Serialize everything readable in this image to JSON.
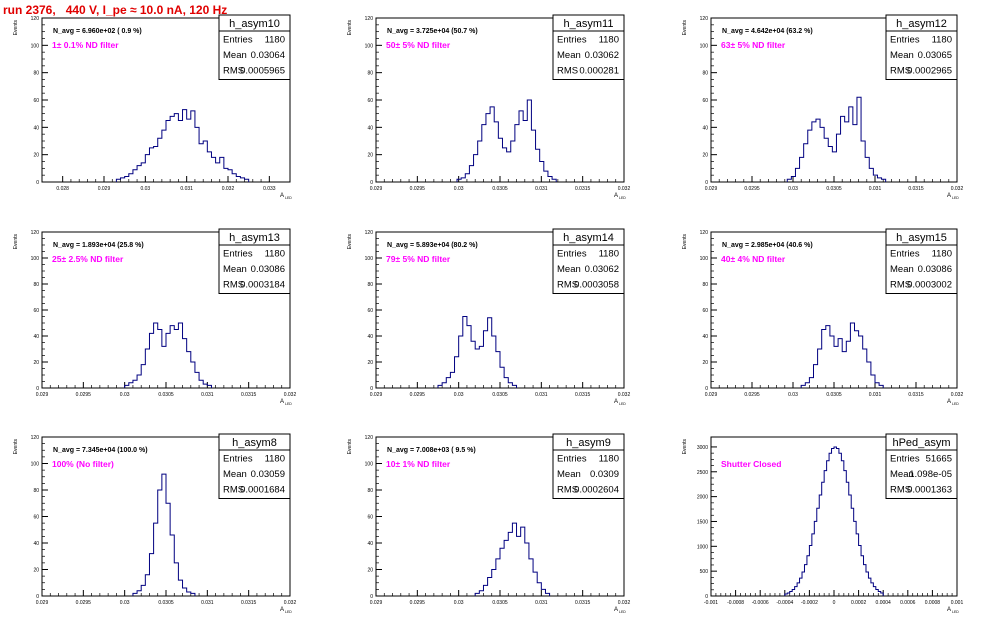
{
  "page_title": "run 2376,   440 V, I_pe ≈ 10.0 nA, 120 Hz",
  "stats_labels": {
    "entries": "Entries",
    "mean": "Mean",
    "rms": "RMS"
  },
  "chart_data": [
    {
      "name": "h_asym10",
      "type": "histogram",
      "ylabel": "Events",
      "xlabel": "A",
      "xlabel_sub": "LED",
      "nav": "N_avg = 6.960e+02 ( 0.9 %)",
      "note": "1± 0.1% ND filter",
      "entries": "1180",
      "mean": "0.03064",
      "rms": "0.0005965",
      "xlim": [
        0.0275,
        0.0335
      ],
      "ylim": [
        0,
        120
      ],
      "xticks": [
        0.028,
        0.029,
        0.03,
        0.031,
        0.032,
        0.033
      ],
      "xticklabels": [
        "0.028",
        "0.029",
        "0.03",
        "0.031",
        "0.032",
        "0.033"
      ],
      "yticks": [
        0,
        20,
        40,
        60,
        80,
        100,
        120
      ],
      "bins": {
        "x0": 0.0293,
        "w": 0.0001,
        "y": [
          2,
          3,
          4,
          6,
          9,
          12,
          14,
          20,
          25,
          26,
          32,
          38,
          45,
          48,
          50,
          45,
          53,
          46,
          52,
          40,
          28,
          30,
          22,
          18,
          14,
          18,
          10,
          9,
          6,
          4,
          3,
          2
        ]
      }
    },
    {
      "name": "h_asym11",
      "type": "histogram",
      "ylabel": "Events",
      "xlabel": "A",
      "xlabel_sub": "LED",
      "nav": "N_avg = 3.725e+04 (50.7 %)",
      "note": "50± 5% ND filter",
      "entries": "1180",
      "mean": "0.03062",
      "rms": "0.000281",
      "xlim": [
        0.029,
        0.032
      ],
      "ylim": [
        0,
        120
      ],
      "xticks": [
        0.029,
        0.0295,
        0.03,
        0.0305,
        0.031,
        0.0315,
        0.032
      ],
      "xticklabels": [
        "0.029",
        "0.0295",
        "0.03",
        "0.0305",
        "0.031",
        "0.0315",
        "0.032"
      ],
      "yticks": [
        0,
        20,
        40,
        60,
        80,
        100,
        120
      ],
      "bins": {
        "x0": 0.02998,
        "w": 5e-05,
        "y": [
          2,
          3,
          6,
          12,
          20,
          30,
          42,
          50,
          55,
          44,
          32,
          25,
          22,
          30,
          42,
          52,
          45,
          60,
          38,
          24,
          15,
          8,
          4,
          2
        ]
      }
    },
    {
      "name": "h_asym12",
      "type": "histogram",
      "ylabel": "Events",
      "xlabel": "A",
      "xlabel_sub": "LED",
      "nav": "N_avg = 4.642e+04 (63.2 %)",
      "note": "63± 5% ND filter",
      "entries": "1180",
      "mean": "0.03065",
      "rms": "0.0002965",
      "xlim": [
        0.029,
        0.032
      ],
      "ylim": [
        0,
        120
      ],
      "xticks": [
        0.029,
        0.0295,
        0.03,
        0.0305,
        0.031,
        0.0315,
        0.032
      ],
      "xticklabels": [
        "0.029",
        "0.0295",
        "0.03",
        "0.0305",
        "0.031",
        "0.0315",
        "0.032"
      ],
      "yticks": [
        0,
        20,
        40,
        60,
        80,
        100,
        120
      ],
      "bins": {
        "x0": 0.02993,
        "w": 5e-05,
        "y": [
          2,
          4,
          10,
          18,
          28,
          38,
          44,
          46,
          40,
          32,
          26,
          22,
          35,
          48,
          44,
          55,
          42,
          62,
          30,
          18,
          10,
          5,
          3,
          2
        ]
      }
    },
    {
      "name": "h_asym13",
      "type": "histogram",
      "ylabel": "Events",
      "xlabel": "A",
      "xlabel_sub": "LED",
      "nav": "N_avg = 1.893e+04 (25.8 %)",
      "note": "25± 2.5% ND filter",
      "entries": "1180",
      "mean": "0.03086",
      "rms": "0.0003184",
      "xlim": [
        0.029,
        0.032
      ],
      "ylim": [
        0,
        120
      ],
      "xticks": [
        0.029,
        0.0295,
        0.03,
        0.0305,
        0.031,
        0.0315,
        0.032
      ],
      "xticklabels": [
        "0.029",
        "0.0295",
        "0.03",
        "0.0305",
        "0.031",
        "0.0315",
        "0.032"
      ],
      "yticks": [
        0,
        20,
        40,
        60,
        80,
        100,
        120
      ],
      "bins": {
        "x0": 0.03,
        "w": 5e-05,
        "y": [
          2,
          4,
          6,
          10,
          18,
          30,
          42,
          50,
          45,
          32,
          42,
          48,
          45,
          50,
          38,
          28,
          20,
          12,
          6,
          3,
          2
        ]
      }
    },
    {
      "name": "h_asym14",
      "type": "histogram",
      "ylabel": "Events",
      "xlabel": "A",
      "xlabel_sub": "LED",
      "nav": "N_avg = 5.893e+04 (80.2 %)",
      "note": "79± 5% ND filter",
      "entries": "1180",
      "mean": "0.03062",
      "rms": "0.0003058",
      "xlim": [
        0.029,
        0.032
      ],
      "ylim": [
        0,
        120
      ],
      "xticks": [
        0.029,
        0.0295,
        0.03,
        0.0305,
        0.031,
        0.0315,
        0.032
      ],
      "xticklabels": [
        "0.029",
        "0.0295",
        "0.03",
        "0.0305",
        "0.031",
        "0.0315",
        "0.032"
      ],
      "yticks": [
        0,
        20,
        40,
        60,
        80,
        100,
        120
      ],
      "bins": {
        "x0": 0.02975,
        "w": 5e-05,
        "y": [
          2,
          4,
          8,
          12,
          24,
          40,
          55,
          48,
          36,
          30,
          32,
          44,
          54,
          40,
          28,
          16,
          8,
          4,
          2
        ]
      }
    },
    {
      "name": "h_asym15",
      "type": "histogram",
      "ylabel": "Events",
      "xlabel": "A",
      "xlabel_sub": "LED",
      "nav": "N_avg = 2.985e+04 (40.6 %)",
      "note": "40± 4% ND filter",
      "entries": "1180",
      "mean": "0.03086",
      "rms": "0.0003002",
      "xlim": [
        0.029,
        0.032
      ],
      "ylim": [
        0,
        120
      ],
      "xticks": [
        0.029,
        0.0295,
        0.03,
        0.0305,
        0.031,
        0.0315,
        0.032
      ],
      "xticklabels": [
        "0.029",
        "0.0295",
        "0.03",
        "0.0305",
        "0.031",
        "0.0315",
        "0.032"
      ],
      "yticks": [
        0,
        20,
        40,
        60,
        80,
        100,
        120
      ],
      "bins": {
        "x0": 0.0301,
        "w": 5e-05,
        "y": [
          2,
          4,
          8,
          18,
          30,
          45,
          48,
          40,
          32,
          38,
          28,
          36,
          50,
          44,
          40,
          30,
          20,
          10,
          4,
          2
        ]
      }
    },
    {
      "name": "h_asym8",
      "type": "histogram",
      "ylabel": "Events",
      "xlabel": "A",
      "xlabel_sub": "LED",
      "nav": "N_avg = 7.345e+04 (100.0 %)",
      "note": "100% (No filter)",
      "entries": "1180",
      "mean": "0.03059",
      "rms": "0.0001684",
      "xlim": [
        0.029,
        0.032
      ],
      "ylim": [
        0,
        120
      ],
      "xticks": [
        0.029,
        0.0295,
        0.03,
        0.0305,
        0.031,
        0.0315,
        0.032
      ],
      "xticklabels": [
        "0.029",
        "0.0295",
        "0.03",
        "0.0305",
        "0.031",
        "0.0315",
        "0.032"
      ],
      "yticks": [
        0,
        20,
        40,
        60,
        80,
        100,
        120
      ],
      "bins": {
        "x0": 0.0301,
        "w": 5e-05,
        "y": [
          2,
          4,
          8,
          16,
          32,
          55,
          80,
          92,
          70,
          46,
          25,
          12,
          6,
          3,
          2
        ]
      }
    },
    {
      "name": "h_asym9",
      "type": "histogram",
      "ylabel": "Events",
      "xlabel": "A",
      "xlabel_sub": "LED",
      "nav": "N_avg = 7.008e+03 ( 9.5 %)",
      "note": "10± 1% ND filter",
      "entries": "1180",
      "mean": "0.0309",
      "rms": "0.0002604",
      "xlim": [
        0.029,
        0.032
      ],
      "ylim": [
        0,
        120
      ],
      "xticks": [
        0.029,
        0.0295,
        0.03,
        0.0305,
        0.031,
        0.0315,
        0.032
      ],
      "xticklabels": [
        "0.029",
        "0.0295",
        "0.03",
        "0.0305",
        "0.031",
        "0.0315",
        "0.032"
      ],
      "yticks": [
        0,
        20,
        40,
        60,
        80,
        100,
        120
      ],
      "bins": {
        "x0": 0.0302,
        "w": 5e-05,
        "y": [
          2,
          4,
          8,
          14,
          20,
          28,
          36,
          42,
          48,
          55,
          45,
          52,
          40,
          28,
          18,
          10,
          5,
          2
        ]
      }
    },
    {
      "name": "hPed_asym",
      "type": "histogram",
      "ylabel": "Events",
      "xlabel": "A",
      "xlabel_sub": "LED",
      "nav": "",
      "note": "Shutter Closed",
      "entries": "51665",
      "mean": "1.098e-05",
      "rms": "0.0001363",
      "xlim": [
        -0.001,
        0.001
      ],
      "ylim": [
        0,
        3200
      ],
      "xticks": [
        -0.001,
        -0.0008,
        -0.0006,
        -0.0004,
        -0.0002,
        0,
        0.0002,
        0.0004,
        0.0006,
        0.0008,
        0.001
      ],
      "xticklabels": [
        "-0.001",
        "-0.0008",
        "-0.0006",
        "-0.0004",
        "-0.0002",
        "0",
        "0.0002",
        "0.0004",
        "0.0006",
        "0.0008",
        "0.001"
      ],
      "yticks": [
        0,
        500,
        1000,
        1500,
        2000,
        2500,
        3000
      ],
      "bins": {
        "x0": -0.0004,
        "w": 2e-05,
        "gauss": {
          "amp": 3000,
          "mean": 1e-05,
          "sigma": 0.000136
        }
      }
    }
  ]
}
